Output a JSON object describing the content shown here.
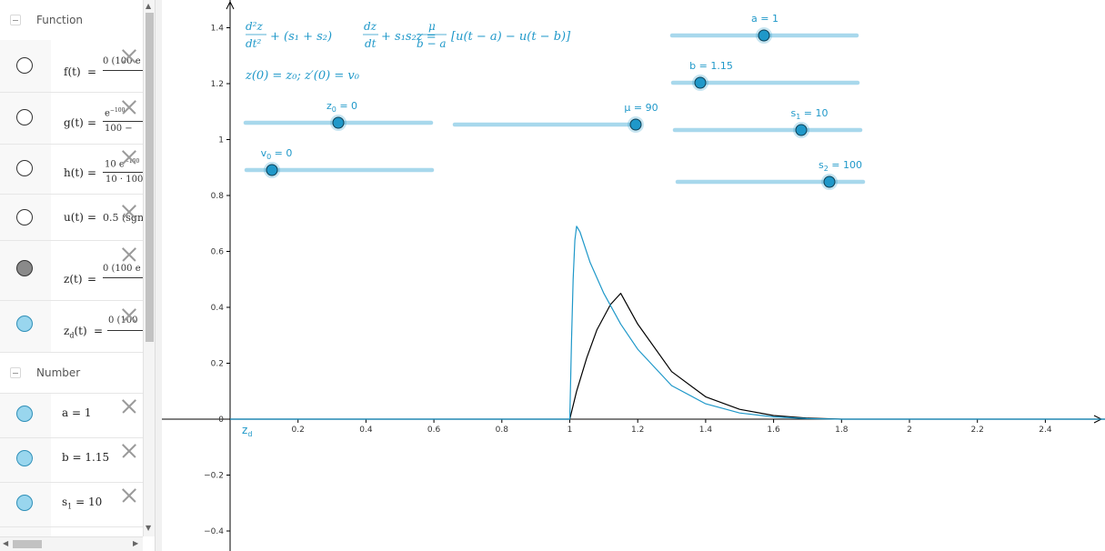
{
  "algebra": {
    "sections": [
      {
        "label": "Function"
      },
      {
        "label": "Number"
      }
    ],
    "functions": [
      {
        "name": "f(t)",
        "num": "0 (100 e",
        "den": "",
        "visible": "empty"
      },
      {
        "name": "g(t)",
        "num": "e",
        "num_sup": "−100",
        "den": "100 −",
        "visible": "empty"
      },
      {
        "name": "h(t)",
        "num": "10 e",
        "num_sup": "−100",
        "den": "10 · 100",
        "visible": "empty"
      },
      {
        "name": "u(t)",
        "value": "0.5 (sgn",
        "visible": "empty"
      },
      {
        "name": "z(t)",
        "num": "0 (100 e",
        "den": "",
        "visible": "gray"
      },
      {
        "name": "z",
        "name_sub": "d",
        "name_tail": "(t)",
        "num": "0 (100",
        "den": "",
        "visible": "blue"
      }
    ],
    "numbers": [
      {
        "name": "a",
        "value": "1"
      },
      {
        "name": "b",
        "value": "1.15"
      },
      {
        "name": "s",
        "name_sub": "1",
        "value": "10"
      }
    ]
  },
  "graphics": {
    "equation": {
      "line1_lhs_num": "d²z",
      "line1_lhs_den": "dt²",
      "line1_mid": "+ (s₁ + s₂)",
      "line1_dz_num": "dz",
      "line1_dz_den": "dt",
      "line1_tail": "+ s₁s₂z =",
      "line1_rhs_num": "μ",
      "line1_rhs_den": "b − a",
      "line1_rhs_tail": "[u(t − a) − u(t − b)]",
      "line2": "z(0) = z₀;     z′(0) = v₀"
    },
    "sliders": [
      {
        "id": "a",
        "label": "a = 1",
        "value": 1
      },
      {
        "id": "b",
        "label": "b = 1.15",
        "value": 1.15
      },
      {
        "id": "z0",
        "label": "z",
        "label_sub": "0",
        "label_tail": " = 0",
        "value": 0
      },
      {
        "id": "mu",
        "label": "μ = 90",
        "value": 90
      },
      {
        "id": "s1",
        "label": "s",
        "label_sub": "1",
        "label_tail": " = 10",
        "value": 10
      },
      {
        "id": "v0",
        "label": "v",
        "label_sub": "0",
        "label_tail": " = 0",
        "value": 0
      },
      {
        "id": "s2",
        "label": "s",
        "label_sub": "2",
        "label_tail": " = 100",
        "value": 100
      }
    ],
    "curve_label": "z",
    "curve_label_sub": "d",
    "colors": {
      "zd": "#1f98c9",
      "z": "#000000",
      "slider_line": "#a8d8ec",
      "slider_point": "#1f98c9"
    }
  },
  "chart_data": {
    "type": "line",
    "xlim": [
      -0.02,
      2.58
    ],
    "ylim": [
      -0.46,
      1.49
    ],
    "x_ticks": [
      "0.2",
      "0.4",
      "0.6",
      "0.8",
      "1",
      "1.2",
      "1.4",
      "1.6",
      "1.8",
      "2",
      "2.2",
      "2.4"
    ],
    "y_ticks": [
      "−0.4",
      "−0.2",
      "0",
      "0.2",
      "0.4",
      "0.6",
      "0.8",
      "1",
      "1.2",
      "1.4"
    ],
    "grid": false,
    "series": [
      {
        "name": "z",
        "points": [
          [
            0,
            0
          ],
          [
            1,
            0
          ],
          [
            1.02,
            0.1
          ],
          [
            1.05,
            0.22
          ],
          [
            1.08,
            0.32
          ],
          [
            1.12,
            0.41
          ],
          [
            1.15,
            0.45
          ],
          [
            1.2,
            0.34
          ],
          [
            1.3,
            0.17
          ],
          [
            1.4,
            0.08
          ],
          [
            1.5,
            0.035
          ],
          [
            1.6,
            0.013
          ],
          [
            1.7,
            0.004
          ],
          [
            1.8,
            0
          ],
          [
            2.58,
            0
          ]
        ]
      },
      {
        "name": "z_d",
        "points": [
          [
            0,
            0
          ],
          [
            1,
            0
          ],
          [
            1.005,
            0.28
          ],
          [
            1.01,
            0.5
          ],
          [
            1.015,
            0.64
          ],
          [
            1.02,
            0.69
          ],
          [
            1.03,
            0.67
          ],
          [
            1.06,
            0.56
          ],
          [
            1.1,
            0.45
          ],
          [
            1.15,
            0.34
          ],
          [
            1.2,
            0.25
          ],
          [
            1.3,
            0.12
          ],
          [
            1.4,
            0.055
          ],
          [
            1.5,
            0.022
          ],
          [
            1.6,
            0.008
          ],
          [
            1.7,
            0.002
          ],
          [
            1.8,
            0
          ],
          [
            2.58,
            0
          ]
        ]
      }
    ]
  }
}
